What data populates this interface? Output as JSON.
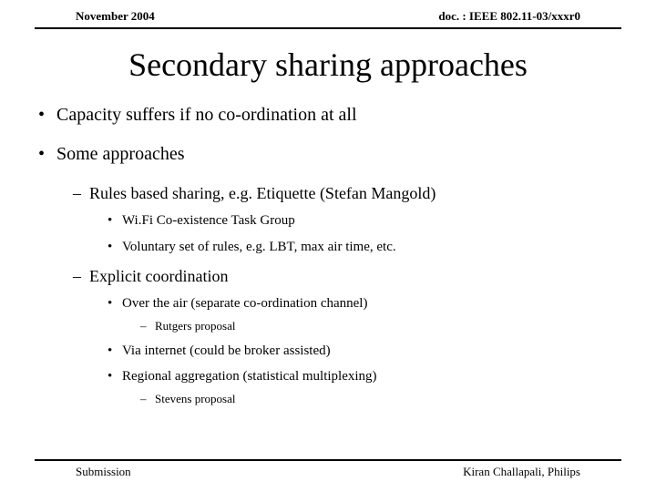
{
  "header": {
    "left": "November 2004",
    "right": "doc. : IEEE 802.11-03/xxxr0"
  },
  "title": "Secondary sharing approaches",
  "bullets": {
    "b1": "Capacity suffers if no co-ordination at all",
    "b2": "Some approaches",
    "b2_1": "Rules based sharing, e.g. Etiquette (Stefan Mangold)",
    "b2_1_1": "Wi.Fi Co-existence Task Group",
    "b2_1_2": "Voluntary set of rules, e.g. LBT, max air time, etc.",
    "b2_2": "Explicit coordination",
    "b2_2_1": "Over the air (separate co-ordination channel)",
    "b2_2_1_1": "Rutgers proposal",
    "b2_2_2": "Via internet (could be broker assisted)",
    "b2_2_3": "Regional aggregation (statistical multiplexing)",
    "b2_2_3_1": "Stevens proposal"
  },
  "footer": {
    "left": "Submission",
    "right": "Kiran Challapali, Philips"
  },
  "style": {
    "background": "#ffffff",
    "text_color": "#000000",
    "font_family": "Times New Roman",
    "title_fontsize": 36,
    "l1_fontsize": 20,
    "l2_fontsize": 18,
    "l3_fontsize": 15,
    "l4_fontsize": 13,
    "header_fontsize": 13,
    "footer_fontsize": 13,
    "rule_color": "#000000"
  }
}
